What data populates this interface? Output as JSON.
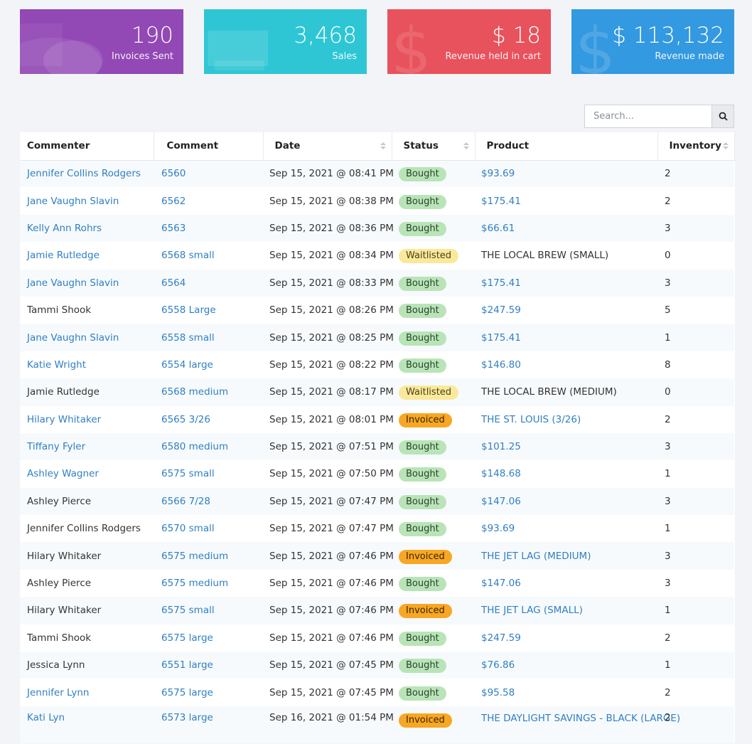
{
  "stats": [
    {
      "value": "190",
      "label": "Invoices Sent",
      "color": "#9248b5",
      "icon": "invoice-icon"
    },
    {
      "value": "3,468",
      "label": "Sales",
      "color": "#2ec6d4",
      "icon": "tag-icon"
    },
    {
      "value": "$ 18",
      "label": "Revenue held in cart",
      "color": "#e8525c",
      "icon": "dollar-icon"
    },
    {
      "value": "$ 113,132",
      "label": "Revenue made",
      "color": "#3399e0",
      "icon": "dollar-icon"
    }
  ],
  "search": {
    "placeholder": "Search...",
    "value": ""
  },
  "table": {
    "columns": [
      "Commenter",
      "Comment",
      "Date",
      "Status",
      "Product",
      "Inventory"
    ],
    "rows": [
      {
        "commenter": "Jennifer Collins Rodgers",
        "commenter_link": true,
        "comment": "6560",
        "date": "Sep 15, 2021 @ 08:41 PM",
        "status": "Bought",
        "product": "$93.69",
        "product_link": true,
        "inventory": "2"
      },
      {
        "commenter": "Jane Vaughn Slavin",
        "commenter_link": true,
        "comment": "6562",
        "date": "Sep 15, 2021 @ 08:38 PM",
        "status": "Bought",
        "product": "$175.41",
        "product_link": true,
        "inventory": "2"
      },
      {
        "commenter": "Kelly Ann Rohrs",
        "commenter_link": true,
        "comment": "6563",
        "date": "Sep 15, 2021 @ 08:36 PM",
        "status": "Bought",
        "product": "$66.61",
        "product_link": true,
        "inventory": "3"
      },
      {
        "commenter": "Jamie Rutledge",
        "commenter_link": true,
        "comment": "6568 small",
        "date": "Sep 15, 2021 @ 08:34 PM",
        "status": "Waitlisted",
        "product": "THE LOCAL BREW (SMALL)",
        "product_link": false,
        "inventory": "0"
      },
      {
        "commenter": "Jane Vaughn Slavin",
        "commenter_link": true,
        "comment": "6564",
        "date": "Sep 15, 2021 @ 08:33 PM",
        "status": "Bought",
        "product": "$175.41",
        "product_link": true,
        "inventory": "3"
      },
      {
        "commenter": "Tammi Shook",
        "commenter_link": false,
        "comment": "6558 Large",
        "date": "Sep 15, 2021 @ 08:26 PM",
        "status": "Bought",
        "product": "$247.59",
        "product_link": true,
        "inventory": "5"
      },
      {
        "commenter": "Jane Vaughn Slavin",
        "commenter_link": true,
        "comment": "6558 small",
        "date": "Sep 15, 2021 @ 08:25 PM",
        "status": "Bought",
        "product": "$175.41",
        "product_link": true,
        "inventory": "1"
      },
      {
        "commenter": "Katie Wright",
        "commenter_link": true,
        "comment": "6554 large",
        "date": "Sep 15, 2021 @ 08:22 PM",
        "status": "Bought",
        "product": "$146.80",
        "product_link": true,
        "inventory": "8"
      },
      {
        "commenter": "Jamie Rutledge",
        "commenter_link": false,
        "comment": "6568 medium",
        "date": "Sep 15, 2021 @ 08:17 PM",
        "status": "Waitlisted",
        "product": "THE LOCAL BREW (MEDIUM)",
        "product_link": false,
        "inventory": "0"
      },
      {
        "commenter": "Hilary Whitaker",
        "commenter_link": true,
        "comment": "6565 3/26",
        "date": "Sep 15, 2021 @ 08:01 PM",
        "status": "Invoiced",
        "product": "THE ST. LOUIS (3/26)",
        "product_link": true,
        "inventory": "2"
      },
      {
        "commenter": "Tiffany Fyler",
        "commenter_link": true,
        "comment": "6580 medium",
        "date": "Sep 15, 2021 @ 07:51 PM",
        "status": "Bought",
        "product": "$101.25",
        "product_link": true,
        "inventory": "3"
      },
      {
        "commenter": "Ashley Wagner",
        "commenter_link": true,
        "comment": "6575 small",
        "date": "Sep 15, 2021 @ 07:50 PM",
        "status": "Bought",
        "product": "$148.68",
        "product_link": true,
        "inventory": "1"
      },
      {
        "commenter": "Ashley Pierce",
        "commenter_link": false,
        "comment": "6566 7/28",
        "date": "Sep 15, 2021 @ 07:47 PM",
        "status": "Bought",
        "product": "$147.06",
        "product_link": true,
        "inventory": "3"
      },
      {
        "commenter": "Jennifer Collins Rodgers",
        "commenter_link": false,
        "comment": "6570 small",
        "date": "Sep 15, 2021 @ 07:47 PM",
        "status": "Bought",
        "product": "$93.69",
        "product_link": true,
        "inventory": "1"
      },
      {
        "commenter": "Hilary Whitaker",
        "commenter_link": false,
        "comment": "6575 medium",
        "date": "Sep 15, 2021 @ 07:46 PM",
        "status": "Invoiced",
        "product": "THE JET LAG (MEDIUM)",
        "product_link": true,
        "inventory": "3"
      },
      {
        "commenter": "Ashley Pierce",
        "commenter_link": false,
        "comment": "6575 medium",
        "date": "Sep 15, 2021 @ 07:46 PM",
        "status": "Bought",
        "product": "$147.06",
        "product_link": true,
        "inventory": "3"
      },
      {
        "commenter": "Hilary Whitaker",
        "commenter_link": false,
        "comment": "6575 small",
        "date": "Sep 15, 2021 @ 07:46 PM",
        "status": "Invoiced",
        "product": "THE JET LAG (SMALL)",
        "product_link": true,
        "inventory": "1"
      },
      {
        "commenter": "Tammi Shook",
        "commenter_link": false,
        "comment": "6575 large",
        "date": "Sep 15, 2021 @ 07:46 PM",
        "status": "Bought",
        "product": "$247.59",
        "product_link": true,
        "inventory": "2"
      },
      {
        "commenter": "Jessica Lynn",
        "commenter_link": false,
        "comment": "6551 large",
        "date": "Sep 15, 2021 @ 07:45 PM",
        "status": "Bought",
        "product": "$76.86",
        "product_link": true,
        "inventory": "1"
      },
      {
        "commenter": "Jennifer Lynn",
        "commenter_link": true,
        "comment": "6575 large",
        "date": "Sep 15, 2021 @ 07:45 PM",
        "status": "Bought",
        "product": "$95.58",
        "product_link": true,
        "inventory": "2"
      },
      {
        "commenter": "Kati Lyn",
        "commenter_link": true,
        "comment": "6573 large",
        "date": "Sep 16, 2021 @ 01:54 PM",
        "status": "Invoiced",
        "product": "THE DAYLIGHT SAVINGS - BLACK (LARGE)",
        "product_link": true,
        "inventory": "2"
      }
    ]
  }
}
